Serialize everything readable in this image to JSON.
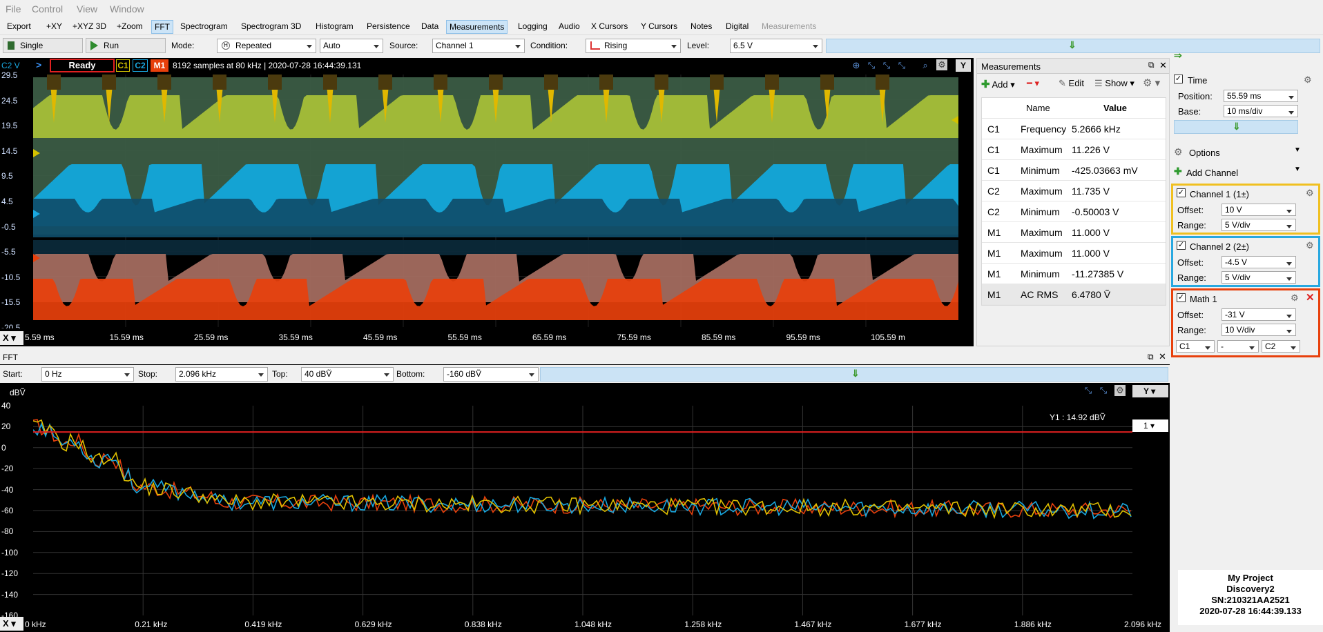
{
  "menu": [
    "File",
    "Control",
    "View",
    "Window"
  ],
  "tabs": [
    "Export",
    "+XY",
    "+XYZ 3D",
    "+Zoom",
    "FFT",
    "Spectrogram",
    "Spectrogram 3D",
    "Histogram",
    "Persistence",
    "Data",
    "Measurements",
    "Logging",
    "Audio",
    "X Cursors",
    "Y Cursors",
    "Notes",
    "Digital",
    "Measurements"
  ],
  "control": {
    "single": "Single",
    "run": "Run",
    "mode_label": "Mode:",
    "mode": "Repeated",
    "auto": "Auto",
    "source_label": "Source:",
    "source": "Channel 1",
    "condition_label": "Condition:",
    "condition": "Rising",
    "level_label": "Level:",
    "level": "6.5 V"
  },
  "scope": {
    "channel_label": "C2 V",
    "status": "Ready",
    "c1": "C1",
    "c2": "C2",
    "m1": "M1",
    "info": "8192 samples at 80 kHz | 2020-07-28 16:44:39.131",
    "y_btn": "Y",
    "x_btn": "X",
    "y_ticks": [
      "29.5",
      "24.5",
      "19.5",
      "14.5",
      "9.5",
      "4.5",
      "-0.5",
      "-5.5",
      "-10.5",
      "-15.5",
      "-20.5"
    ],
    "x_ticks": [
      "5.59 ms",
      "15.59 ms",
      "25.59 ms",
      "35.59 ms",
      "45.59 ms",
      "55.59 ms",
      "65.59 ms",
      "75.59 ms",
      "85.59 ms",
      "95.59 ms",
      "105.59 m"
    ]
  },
  "measurements": {
    "title": "Measurements",
    "add": "Add",
    "edit": "Edit",
    "show": "Show",
    "col_name": "Name",
    "col_value": "Value",
    "rows": [
      {
        "ch": "C1",
        "name": "Frequency",
        "value": "5.2666 kHz"
      },
      {
        "ch": "C1",
        "name": "Maximum",
        "value": "11.226 V"
      },
      {
        "ch": "C1",
        "name": "Minimum",
        "value": "-425.03663 mV"
      },
      {
        "ch": "C2",
        "name": "Maximum",
        "value": "11.735 V"
      },
      {
        "ch": "C2",
        "name": "Minimum",
        "value": "-0.50003 V"
      },
      {
        "ch": "M1",
        "name": "Maximum",
        "value": "11.000 V"
      },
      {
        "ch": "M1",
        "name": "Maximum",
        "value": "11.000 V"
      },
      {
        "ch": "M1",
        "name": "Minimum",
        "value": "-11.27385 V"
      },
      {
        "ch": "M1",
        "name": "AC RMS",
        "value": "6.4780 Ṽ"
      }
    ]
  },
  "right": {
    "time_title": "Time",
    "position_label": "Position:",
    "position": "55.59 ms",
    "base_label": "Base:",
    "base": "10 ms/div",
    "options": "Options",
    "add_channel": "Add Channel",
    "ch1_title": "Channel 1 (1±)",
    "ch1_offset": "10 V",
    "ch1_range": "5 V/div",
    "ch2_title": "Channel 2 (2±)",
    "ch2_offset": "-4.5 V",
    "ch2_range": "5 V/div",
    "math_title": "Math 1",
    "math_offset": "-31 V",
    "math_range": "10 V/div",
    "math_a": "C1",
    "math_op": "-",
    "math_b": "C2",
    "offset_label": "Offset:",
    "range_label": "Range:"
  },
  "fft": {
    "title": "FFT",
    "start_label": "Start:",
    "start": "0 Hz",
    "stop_label": "Stop:",
    "stop": "2.096 kHz",
    "top_label": "Top:",
    "top": "40 dBṼ",
    "bottom_label": "Bottom:",
    "bottom": "-160 dBṼ",
    "unit": "dBṼ",
    "y_btn": "Y",
    "x_btn": "X",
    "cursor_label": "Y1 : 14.92 dBṼ",
    "cursor_sel": "1",
    "y_ticks": [
      "40",
      "20",
      "0",
      "-20",
      "-40",
      "-60",
      "-80",
      "-100",
      "-120",
      "-140",
      "-160"
    ],
    "x_ticks": [
      "0 kHz",
      "0.21 kHz",
      "0.419 kHz",
      "0.629 kHz",
      "0.838 kHz",
      "1.048 kHz",
      "1.258 kHz",
      "1.467 kHz",
      "1.677 kHz",
      "1.886 kHz",
      "2.096 kHz"
    ]
  },
  "device": {
    "project": "My Project",
    "name": "Discovery2",
    "sn": "SN:210321AA2521",
    "time": "2020-07-28 16:44:39.133"
  },
  "colors": {
    "c1": "#d4c200",
    "c2": "#19a8e0",
    "m1": "#e8400c",
    "cursor": "#e02020"
  }
}
